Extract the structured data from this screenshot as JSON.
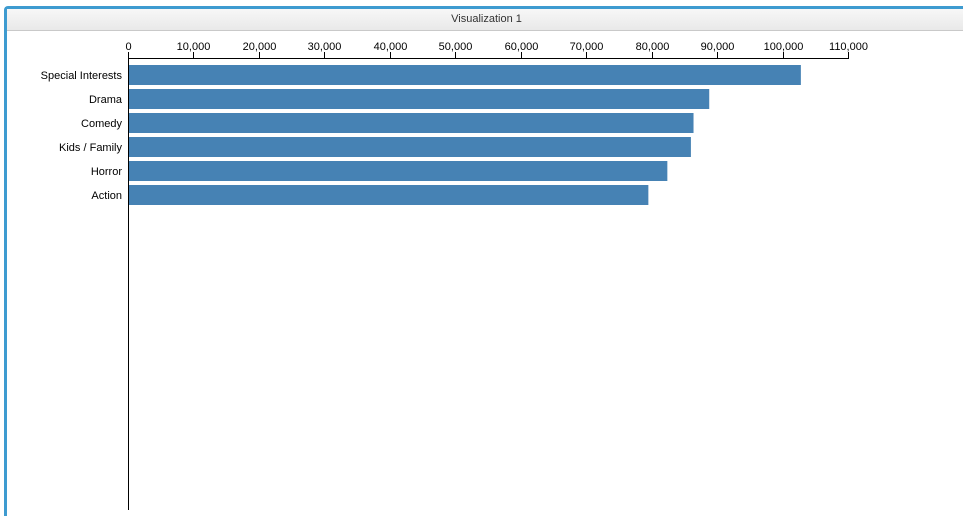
{
  "window": {
    "title": "Visualization 1"
  },
  "colors": {
    "bar": "#4682b4",
    "axis": "#000000",
    "window_border": "#3e9bd0"
  },
  "chart_data": {
    "type": "bar",
    "orientation": "horizontal",
    "title": "",
    "xlabel": "",
    "ylabel": "",
    "xlim": [
      0,
      110000
    ],
    "ticks": [
      0,
      10000,
      20000,
      30000,
      40000,
      50000,
      60000,
      70000,
      80000,
      90000,
      100000,
      110000
    ],
    "tick_labels": [
      "0",
      "10,000",
      "20,000",
      "30,000",
      "40,000",
      "50,000",
      "60,000",
      "70,000",
      "80,000",
      "90,000",
      "100,000",
      "110,000"
    ],
    "axis_position": "top",
    "grid": false,
    "categories": [
      "Special Interests",
      "Drama",
      "Comedy",
      "Kids / Family",
      "Horror",
      "Action"
    ],
    "values": [
      102800,
      88800,
      86400,
      86000,
      82400,
      79500
    ]
  }
}
